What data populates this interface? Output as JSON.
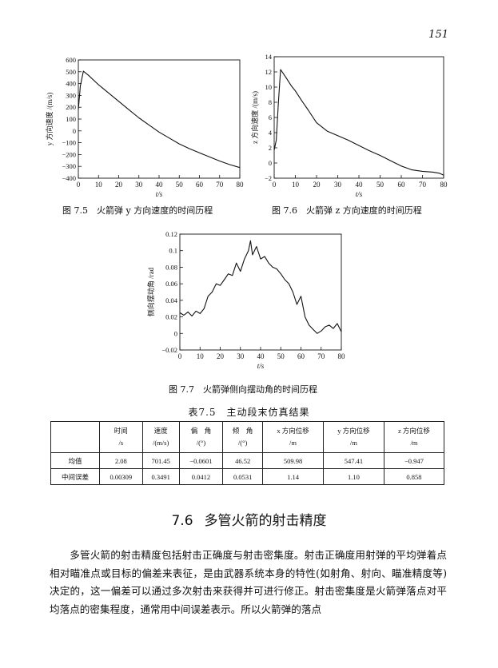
{
  "page": {
    "number": "151"
  },
  "figures": [
    {
      "id": "fig-7-5",
      "caption": "图 7.5　火箭弹 y 方向速度的时间历程",
      "xlabel": "t/s",
      "ylabel": "y 方向速度 /(m/s)",
      "xticks": [
        "0",
        "10",
        "20",
        "30",
        "40",
        "50",
        "60",
        "70",
        "80"
      ],
      "yticks": [
        "600",
        "500",
        "400",
        "300",
        "200",
        "100",
        "0",
        "−100",
        "−200",
        "−300",
        "−400"
      ]
    },
    {
      "id": "fig-7-6",
      "caption": "图 7.6　火箭弹 z 方向速度的时间历程",
      "xlabel": "t/s",
      "ylabel": "z 方向速度 /(m/s)",
      "xticks": [
        "0",
        "10",
        "20",
        "30",
        "40",
        "50",
        "60",
        "70",
        "80"
      ],
      "yticks": [
        "14",
        "12",
        "10",
        "8",
        "6",
        "4",
        "2",
        "0",
        "−2"
      ]
    },
    {
      "id": "fig-7-7",
      "caption": "图 7.7　火箭弹侧向摆动角的时间历程",
      "xlabel": "t/s",
      "ylabel": "侧向摆动角 /rad",
      "xticks": [
        "0",
        "10",
        "20",
        "30",
        "40",
        "50",
        "60",
        "70",
        "80"
      ],
      "yticks": [
        "0.12",
        "0.1",
        "0.08",
        "0.06",
        "0.04",
        "0.02",
        "0",
        "−0.02"
      ]
    }
  ],
  "chart_data": [
    {
      "type": "line",
      "xlabel": "t/s",
      "ylabel": "y 方向速度 /(m/s)",
      "xlim": [
        0,
        80
      ],
      "ylim": [
        -400,
        600
      ],
      "series": [
        {
          "x": [
            0,
            1,
            2.5,
            5,
            10,
            15,
            20,
            25,
            30,
            35,
            40,
            45,
            50,
            55,
            60,
            65,
            70,
            75,
            80
          ],
          "y": [
            180,
            380,
            505,
            470,
            390,
            320,
            250,
            180,
            110,
            50,
            -10,
            -60,
            -110,
            -150,
            -185,
            -220,
            -255,
            -285,
            -310
          ]
        }
      ]
    },
    {
      "type": "line",
      "xlabel": "t/s",
      "ylabel": "z 方向速度 /(m/s)",
      "xlim": [
        0,
        80
      ],
      "ylim": [
        -2,
        14
      ],
      "series": [
        {
          "x": [
            0,
            1,
            2,
            3,
            5,
            8,
            10,
            13,
            16,
            20,
            25,
            30,
            35,
            40,
            45,
            50,
            55,
            60,
            65,
            70,
            75,
            78,
            80
          ],
          "y": [
            1.7,
            3,
            8,
            12.3,
            11.5,
            10.2,
            9.5,
            8.2,
            7.0,
            5.3,
            4.2,
            3.6,
            3.0,
            2.3,
            1.6,
            1.0,
            0.3,
            -0.4,
            -0.9,
            -1.1,
            -1.2,
            -1.35,
            -1.6
          ]
        }
      ]
    },
    {
      "type": "line",
      "xlabel": "t/s",
      "ylabel": "侧向摆动角 /rad",
      "xlim": [
        0,
        80
      ],
      "ylim": [
        -0.02,
        0.12
      ],
      "series": [
        {
          "x": [
            0,
            2,
            4,
            6,
            8,
            10,
            12,
            14,
            16,
            18,
            20,
            22,
            24,
            26,
            28,
            30,
            32,
            34,
            35,
            36,
            38,
            40,
            42,
            44,
            46,
            48,
            50,
            52,
            54,
            56,
            58,
            60,
            62,
            64,
            66,
            68,
            70,
            72,
            74,
            76,
            78,
            80
          ],
          "y": [
            0.025,
            0.022,
            0.026,
            0.021,
            0.027,
            0.024,
            0.03,
            0.045,
            0.05,
            0.06,
            0.058,
            0.065,
            0.072,
            0.07,
            0.085,
            0.075,
            0.09,
            0.1,
            0.112,
            0.095,
            0.105,
            0.09,
            0.093,
            0.085,
            0.08,
            0.078,
            0.072,
            0.065,
            0.06,
            0.05,
            0.035,
            0.045,
            0.02,
            0.01,
            0.005,
            0.0,
            0.003,
            0.008,
            0.01,
            0.006,
            0.012,
            0.002
          ]
        }
      ]
    }
  ],
  "table": {
    "title": "表7.5　主动段末仿真结果",
    "headers": [
      {
        "name": "时间",
        "unit": "/s"
      },
      {
        "name": "速度",
        "unit": "/(m/s)"
      },
      {
        "name": "偏　角",
        "unit": "/(°)"
      },
      {
        "name": "倾　角",
        "unit": "/(°)"
      },
      {
        "name": "x 方向位移",
        "unit": "/m"
      },
      {
        "name": "y 方向位移",
        "unit": "/m"
      },
      {
        "name": "z 方向位移",
        "unit": "/m"
      }
    ],
    "rows": [
      {
        "label": "均值",
        "values": [
          "2.08",
          "701.45",
          "−0.0601",
          "46.52",
          "509.98",
          "547.41",
          "−0.947"
        ]
      },
      {
        "label": "中间误差",
        "values": [
          "0.00309",
          "0.3491",
          "0.0412",
          "0.0531",
          "1.14",
          "1.10",
          "0.858"
        ]
      }
    ]
  },
  "section": {
    "number": "7.6",
    "title": "多管火箭的射击精度"
  },
  "paragraph": "多管火箭的射击精度包括射击正确度与射击密集度。射击正确度用射弹的平均弹着点相对瞄准点或目标的偏差来表征，是由武器系统本身的特性(如射角、射向、瞄准精度等)决定的，这一偏差可以通过多次射击来获得并可进行修正。射击密集度是火箭弹落点对平均落点的密集程度，通常用中间误差表示。所以火箭弹的落点"
}
